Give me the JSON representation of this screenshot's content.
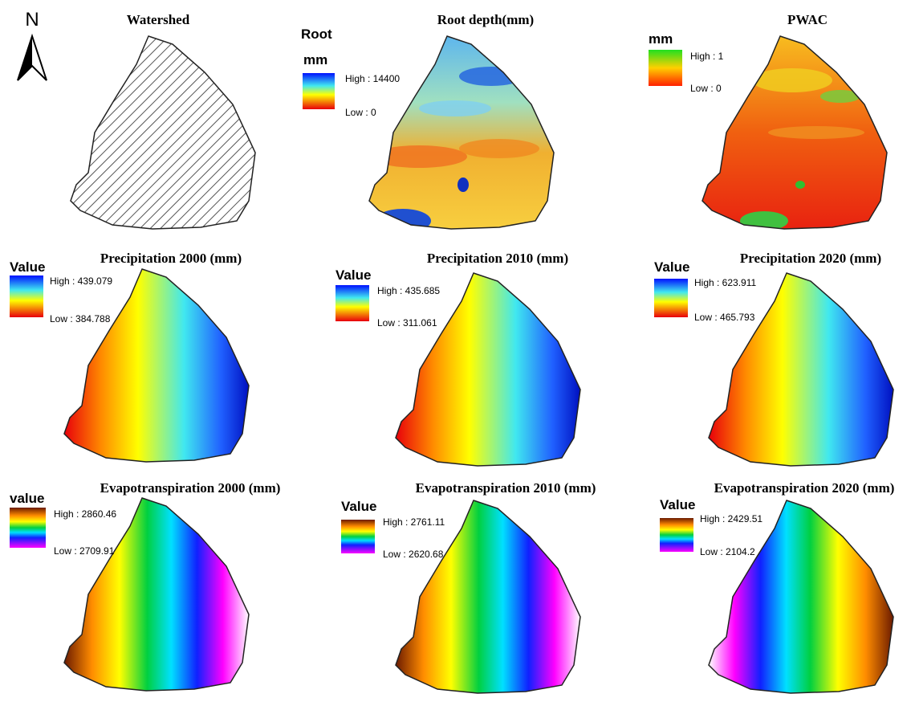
{
  "north": "N",
  "panels": [
    {
      "title": "Watershed"
    },
    {
      "title": "Root depth(mm)",
      "legend": {
        "title": "Root",
        "unit": "mm",
        "high": "High : 14400",
        "low": "Low : 0"
      }
    },
    {
      "title": "PWAC",
      "legend": {
        "title": "mm",
        "high": "High : 1",
        "low": "Low : 0"
      }
    },
    {
      "title": "Precipitation 2000 (mm)",
      "legend": {
        "title": "Value",
        "high": "High : 439.079",
        "low": "Low : 384.788"
      }
    },
    {
      "title": "Precipitation 2010 (mm)",
      "legend": {
        "title": "Value",
        "high": "High : 435.685",
        "low": "Low : 311.061"
      }
    },
    {
      "title": "Precipitation 2020 (mm)",
      "legend": {
        "title": "Value",
        "high": "High : 623.911",
        "low": "Low : 465.793"
      }
    },
    {
      "title": "Evapotranspiration 2000 (mm)",
      "legend": {
        "title": "value",
        "high": "High : 2860.46",
        "low": "Low : 2709.91"
      }
    },
    {
      "title": "Evapotranspiration 2010 (mm)",
      "legend": {
        "title": "Value",
        "high": "High : 2761.11",
        "low": "Low : 2620.68"
      }
    },
    {
      "title": "Evapotranspiration 2020 (mm)",
      "legend": {
        "title": "Value",
        "high": "High : 2429.51",
        "low": "Low : 2104.2"
      }
    }
  ]
}
